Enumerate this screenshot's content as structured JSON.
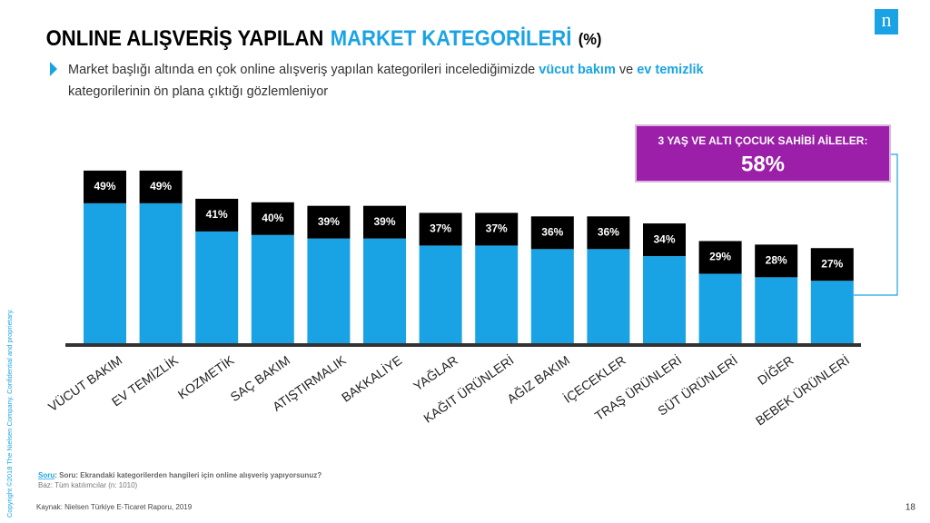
{
  "chart_data": {
    "type": "bar",
    "title": "ONLINE ALIŞVERİŞ YAPILAN",
    "title_highlight": "MARKET KATEGORİLERİ",
    "title_unit": "(%)",
    "subtitle": [
      "Market başlığı altında en çok online alışveriş yapılan kategorileri incelediğimizde ",
      "vücut bakım",
      " ve ",
      "ev temizlik",
      "kategorilerinin ön plana çıktığı gözlemleniyor"
    ],
    "categories": [
      "VÜCUT BAKIM",
      "EV TEMİZLİK",
      "KOZMETİK",
      "SAÇ BAKIM",
      "ATIŞTIRMALIK",
      "BAKKALİYE",
      "YAĞLAR",
      "KAĞIT ÜRÜNLERİ",
      "AĞIZ BAKIM",
      "İÇECEKLER",
      "TRAŞ ÜRÜNLERİ",
      "SÜT ÜRÜNLERİ",
      "DİĞER",
      "BEBEK ÜRÜNLERİ"
    ],
    "values": [
      49,
      49,
      41,
      40,
      39,
      39,
      37,
      37,
      36,
      36,
      34,
      29,
      28,
      27
    ],
    "value_labels": [
      "49%",
      "49%",
      "41%",
      "40%",
      "39%",
      "39%",
      "37%",
      "37%",
      "36%",
      "36%",
      "34%",
      "29%",
      "28%",
      "27%"
    ],
    "color": "#1aa3e4",
    "label_color": "#000000",
    "annotation": {
      "label": "3 YAŞ VE ALTI ÇOCUK SAHİBİ AİLELER:",
      "value": 58,
      "value_label": "58%",
      "color": "#9b1fa8"
    },
    "question": [
      "Soru",
      ": Soru: Ekrandaki kategorilerden hangileri için online alışveriş yapıyorsunuz?"
    ],
    "base": "Baz: Tüm katılımcılar (n: 1010)",
    "source": "Kaynak: Nielsen Türkiye E-Ticaret Raporu, 2019",
    "page_number": "18",
    "copyright": "Copyright ©2018 The Nielsen Company. Confidential and proprietary.",
    "logo": "n"
  }
}
